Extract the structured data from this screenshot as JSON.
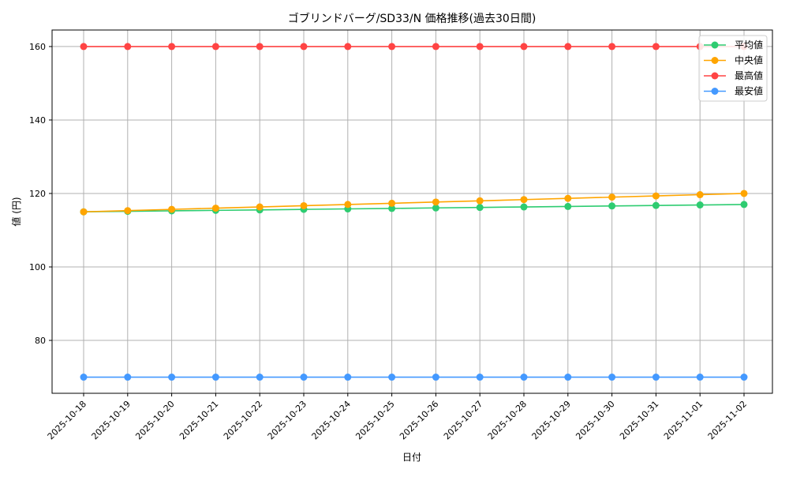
{
  "chart_data": {
    "type": "line",
    "title": "ゴブリンドバーグ/SD33/N 価格推移(過去30日間)",
    "xlabel": "日付",
    "ylabel": "値 (円)",
    "categories": [
      "2025-10-18",
      "2025-10-19",
      "2025-10-20",
      "2025-10-21",
      "2025-10-22",
      "2025-10-23",
      "2025-10-24",
      "2025-10-25",
      "2025-10-26",
      "2025-10-27",
      "2025-10-28",
      "2025-10-29",
      "2025-10-30",
      "2025-10-31",
      "2025-11-01",
      "2025-11-02"
    ],
    "ylim": [
      65.6,
      164.5
    ],
    "yticks": [
      80,
      100,
      120,
      140,
      160
    ],
    "grid": true,
    "legend_position": "top-right",
    "series": [
      {
        "name": "平均値",
        "color": "#2ecc71",
        "values": [
          115.0,
          115.13,
          115.27,
          115.4,
          115.53,
          115.67,
          115.8,
          115.93,
          116.07,
          116.2,
          116.33,
          116.47,
          116.6,
          116.73,
          116.87,
          117.0
        ]
      },
      {
        "name": "中央値",
        "color": "#ffa500",
        "values": [
          115.0,
          115.33,
          115.67,
          116.0,
          116.33,
          116.67,
          117.0,
          117.33,
          117.67,
          118.0,
          118.33,
          118.67,
          119.0,
          119.33,
          119.67,
          120.0
        ]
      },
      {
        "name": "最高値",
        "color": "#ff4444",
        "values": [
          160,
          160,
          160,
          160,
          160,
          160,
          160,
          160,
          160,
          160,
          160,
          160,
          160,
          160,
          160,
          160
        ]
      },
      {
        "name": "最安値",
        "color": "#4499ff",
        "values": [
          70,
          70,
          70,
          70,
          70,
          70,
          70,
          70,
          70,
          70,
          70,
          70,
          70,
          70,
          70,
          70
        ]
      }
    ]
  }
}
